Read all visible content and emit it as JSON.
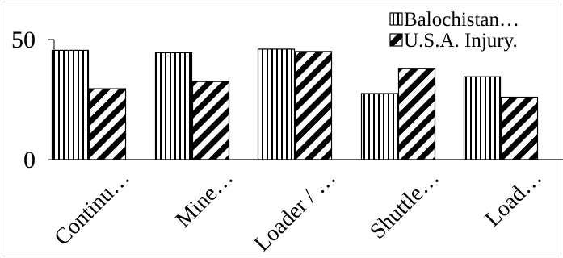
{
  "chart_data": {
    "type": "bar",
    "categories": [
      "Continu…",
      "Mine…",
      "Loader / …",
      "Shuttle…",
      "Load…"
    ],
    "series": [
      {
        "name": "Balochistan…",
        "pattern": "vertical-lines",
        "values": [
          45.5,
          44.5,
          46,
          27.5,
          34.5
        ]
      },
      {
        "name": "U.S.A. Injury.",
        "pattern": "diagonal-stripes",
        "values": [
          29.5,
          32.5,
          45,
          38,
          26
        ]
      }
    ],
    "yticks": [
      0,
      50
    ],
    "ylim": [
      0,
      60
    ],
    "legend_position": "top-right",
    "grid": false,
    "colors": {
      "ink": "#000000",
      "background": "#ffffff",
      "frame": "#d9d9d9"
    }
  }
}
